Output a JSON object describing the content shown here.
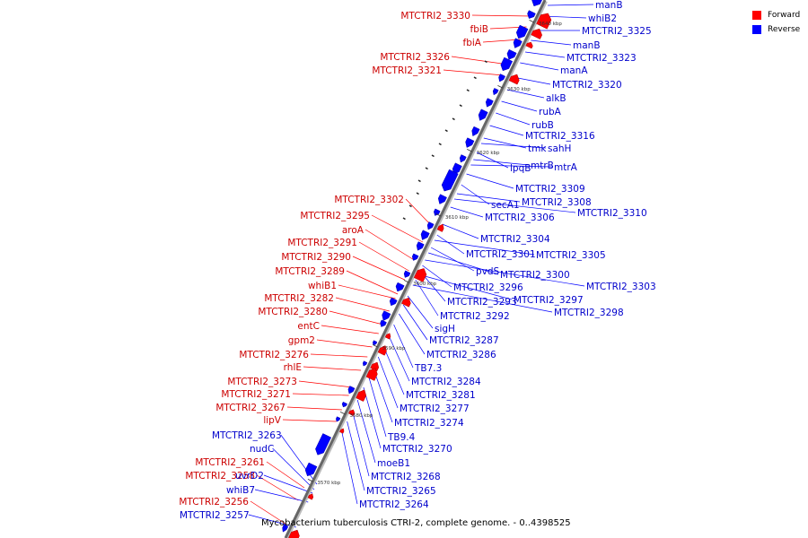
{
  "legend": {
    "forward_label": "Forward",
    "reverse_label": "Reverse",
    "forward_color": "#ff0000",
    "reverse_color": "#0000ff"
  },
  "caption": "Mycobacterium tuberculosis CTRI-2, complete genome. - 0..4398525",
  "ticks": [
    "3570 kbp",
    "3580 kbp",
    "3590 kbp",
    "3600 kbp",
    "3610 kbp",
    "3620 kbp",
    "3630 kbp",
    "3640 kbp"
  ],
  "forward_labels": [
    "MTCTRI2_3330",
    "fbiB",
    "fbiA",
    "MTCTRI2_3326",
    "MTCTRI2_3321",
    "MTCTRI2_3302",
    "MTCTRI2_3295",
    "aroA",
    "MTCTRI2_3291",
    "MTCTRI2_3290",
    "MTCTRI2_3289",
    "whiB1",
    "MTCTRI2_3282",
    "MTCTRI2_3280",
    "entC",
    "gpm2",
    "MTCTRI2_3276",
    "rhlE",
    "MTCTRI2_3273",
    "MTCTRI2_3271",
    "MTCTRI2_3267",
    "lipV",
    "MTCTRI2_3261",
    "MTCTRI2_3258",
    "MTCTRI2_3256"
  ],
  "reverse_labels": [
    "manB",
    "whiB2",
    "MTCTRI2_3325",
    "manB",
    "MTCTRI2_3323",
    "manA",
    "MTCTRI2_3320",
    "alkB",
    "rubA",
    "rubB",
    "MTCTRI2_3316",
    "tmk",
    "sahH",
    "lpqB",
    "mtrB",
    "mtrA",
    "MTCTRI2_3309",
    "secA1",
    "MTCTRI2_3308",
    "MTCTRI2_3310",
    "MTCTRI2_3306",
    "MTCTRI2_3304",
    "MTCTRI2_3301",
    "MTCTRI2_3305",
    "pvdS",
    "MTCTRI2_3300",
    "MTCTRI2_3303",
    "MTCTRI2_3296",
    "MTCTRI2_3293",
    "MTCTRI2_3297",
    "MTCTRI2_3292",
    "MTCTRI2_3298",
    "sigH",
    "MTCTRI2_3287",
    "MTCTRI2_3286",
    "TB7.3",
    "MTCTRI2_3284",
    "MTCTRI2_3281",
    "MTCTRI2_3277",
    "MTCTRI2_3274",
    "TB9.4",
    "MTCTRI2_3270",
    "moeB1",
    "MTCTRI2_3268",
    "MTCTRI2_3265",
    "MTCTRI2_3264",
    "MTCTRI2_3263",
    "nudC",
    "uvrD2",
    "whiB7",
    "MTCTRI2_3257"
  ]
}
